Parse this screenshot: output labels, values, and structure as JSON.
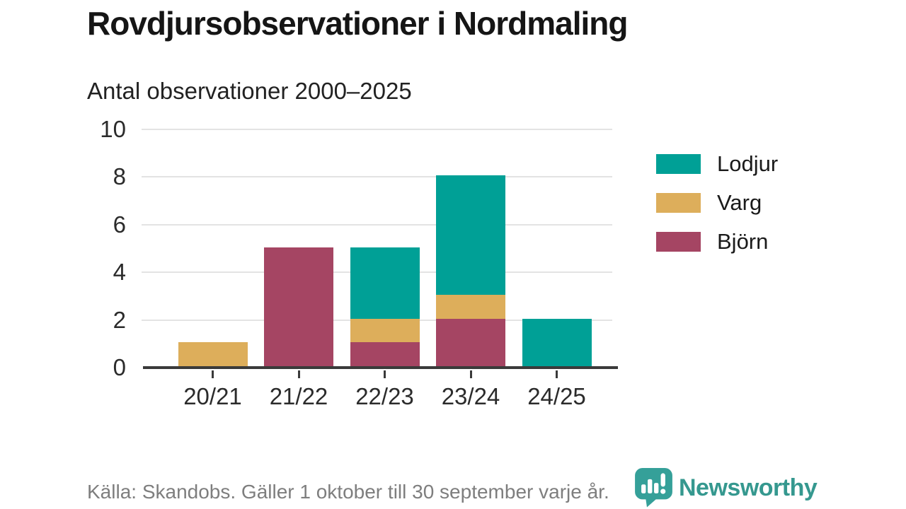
{
  "title": "Rovdjursobservationer i Nordmaling",
  "subtitle": "Antal observationer 2000–2025",
  "source_note": "Källa: Skandobs. Gäller 1 oktober till 30 september varje år.",
  "branding": {
    "name": "Newsworthy",
    "icon": "speech-bubble-bar-chart-icon",
    "color": "#35988F"
  },
  "colors": {
    "axis": "#3A3A3A",
    "grid": "#E3E3E3",
    "tick_label": "#2B2B2B",
    "title_text": "#151515",
    "muted_text": "#7E7E7E",
    "lodjur": "#00A096",
    "varg": "#DDAE5B",
    "bjorn": "#A54563"
  },
  "legend": {
    "position": "right",
    "items": [
      {
        "label": "Lodjur",
        "color": "#00A096"
      },
      {
        "label": "Varg",
        "color": "#DDAE5B"
      },
      {
        "label": "Björn",
        "color": "#A54563"
      }
    ]
  },
  "chart_data": {
    "type": "bar",
    "stacked": true,
    "title": "Rovdjursobservationer i Nordmaling",
    "subtitle": "Antal observationer 2000–2025",
    "categories": [
      "20/21",
      "21/22",
      "22/23",
      "23/24",
      "24/25"
    ],
    "series": [
      {
        "name": "Lodjur",
        "color": "#00A096",
        "values": [
          0,
          0,
          3,
          5,
          2
        ]
      },
      {
        "name": "Varg",
        "color": "#DDAE5B",
        "values": [
          1,
          0,
          1,
          1,
          0
        ]
      },
      {
        "name": "Björn",
        "color": "#A54563",
        "values": [
          0,
          5,
          1,
          2,
          0
        ]
      }
    ],
    "stack_order_bottom_to_top": [
      "Björn",
      "Varg",
      "Lodjur"
    ],
    "totals": [
      1,
      5,
      5,
      8,
      2
    ],
    "xlabel": "",
    "ylabel": "",
    "ylim": [
      0,
      10
    ],
    "yticks": [
      0,
      2,
      4,
      6,
      8,
      10
    ],
    "grid": true,
    "legend_position": "right"
  }
}
